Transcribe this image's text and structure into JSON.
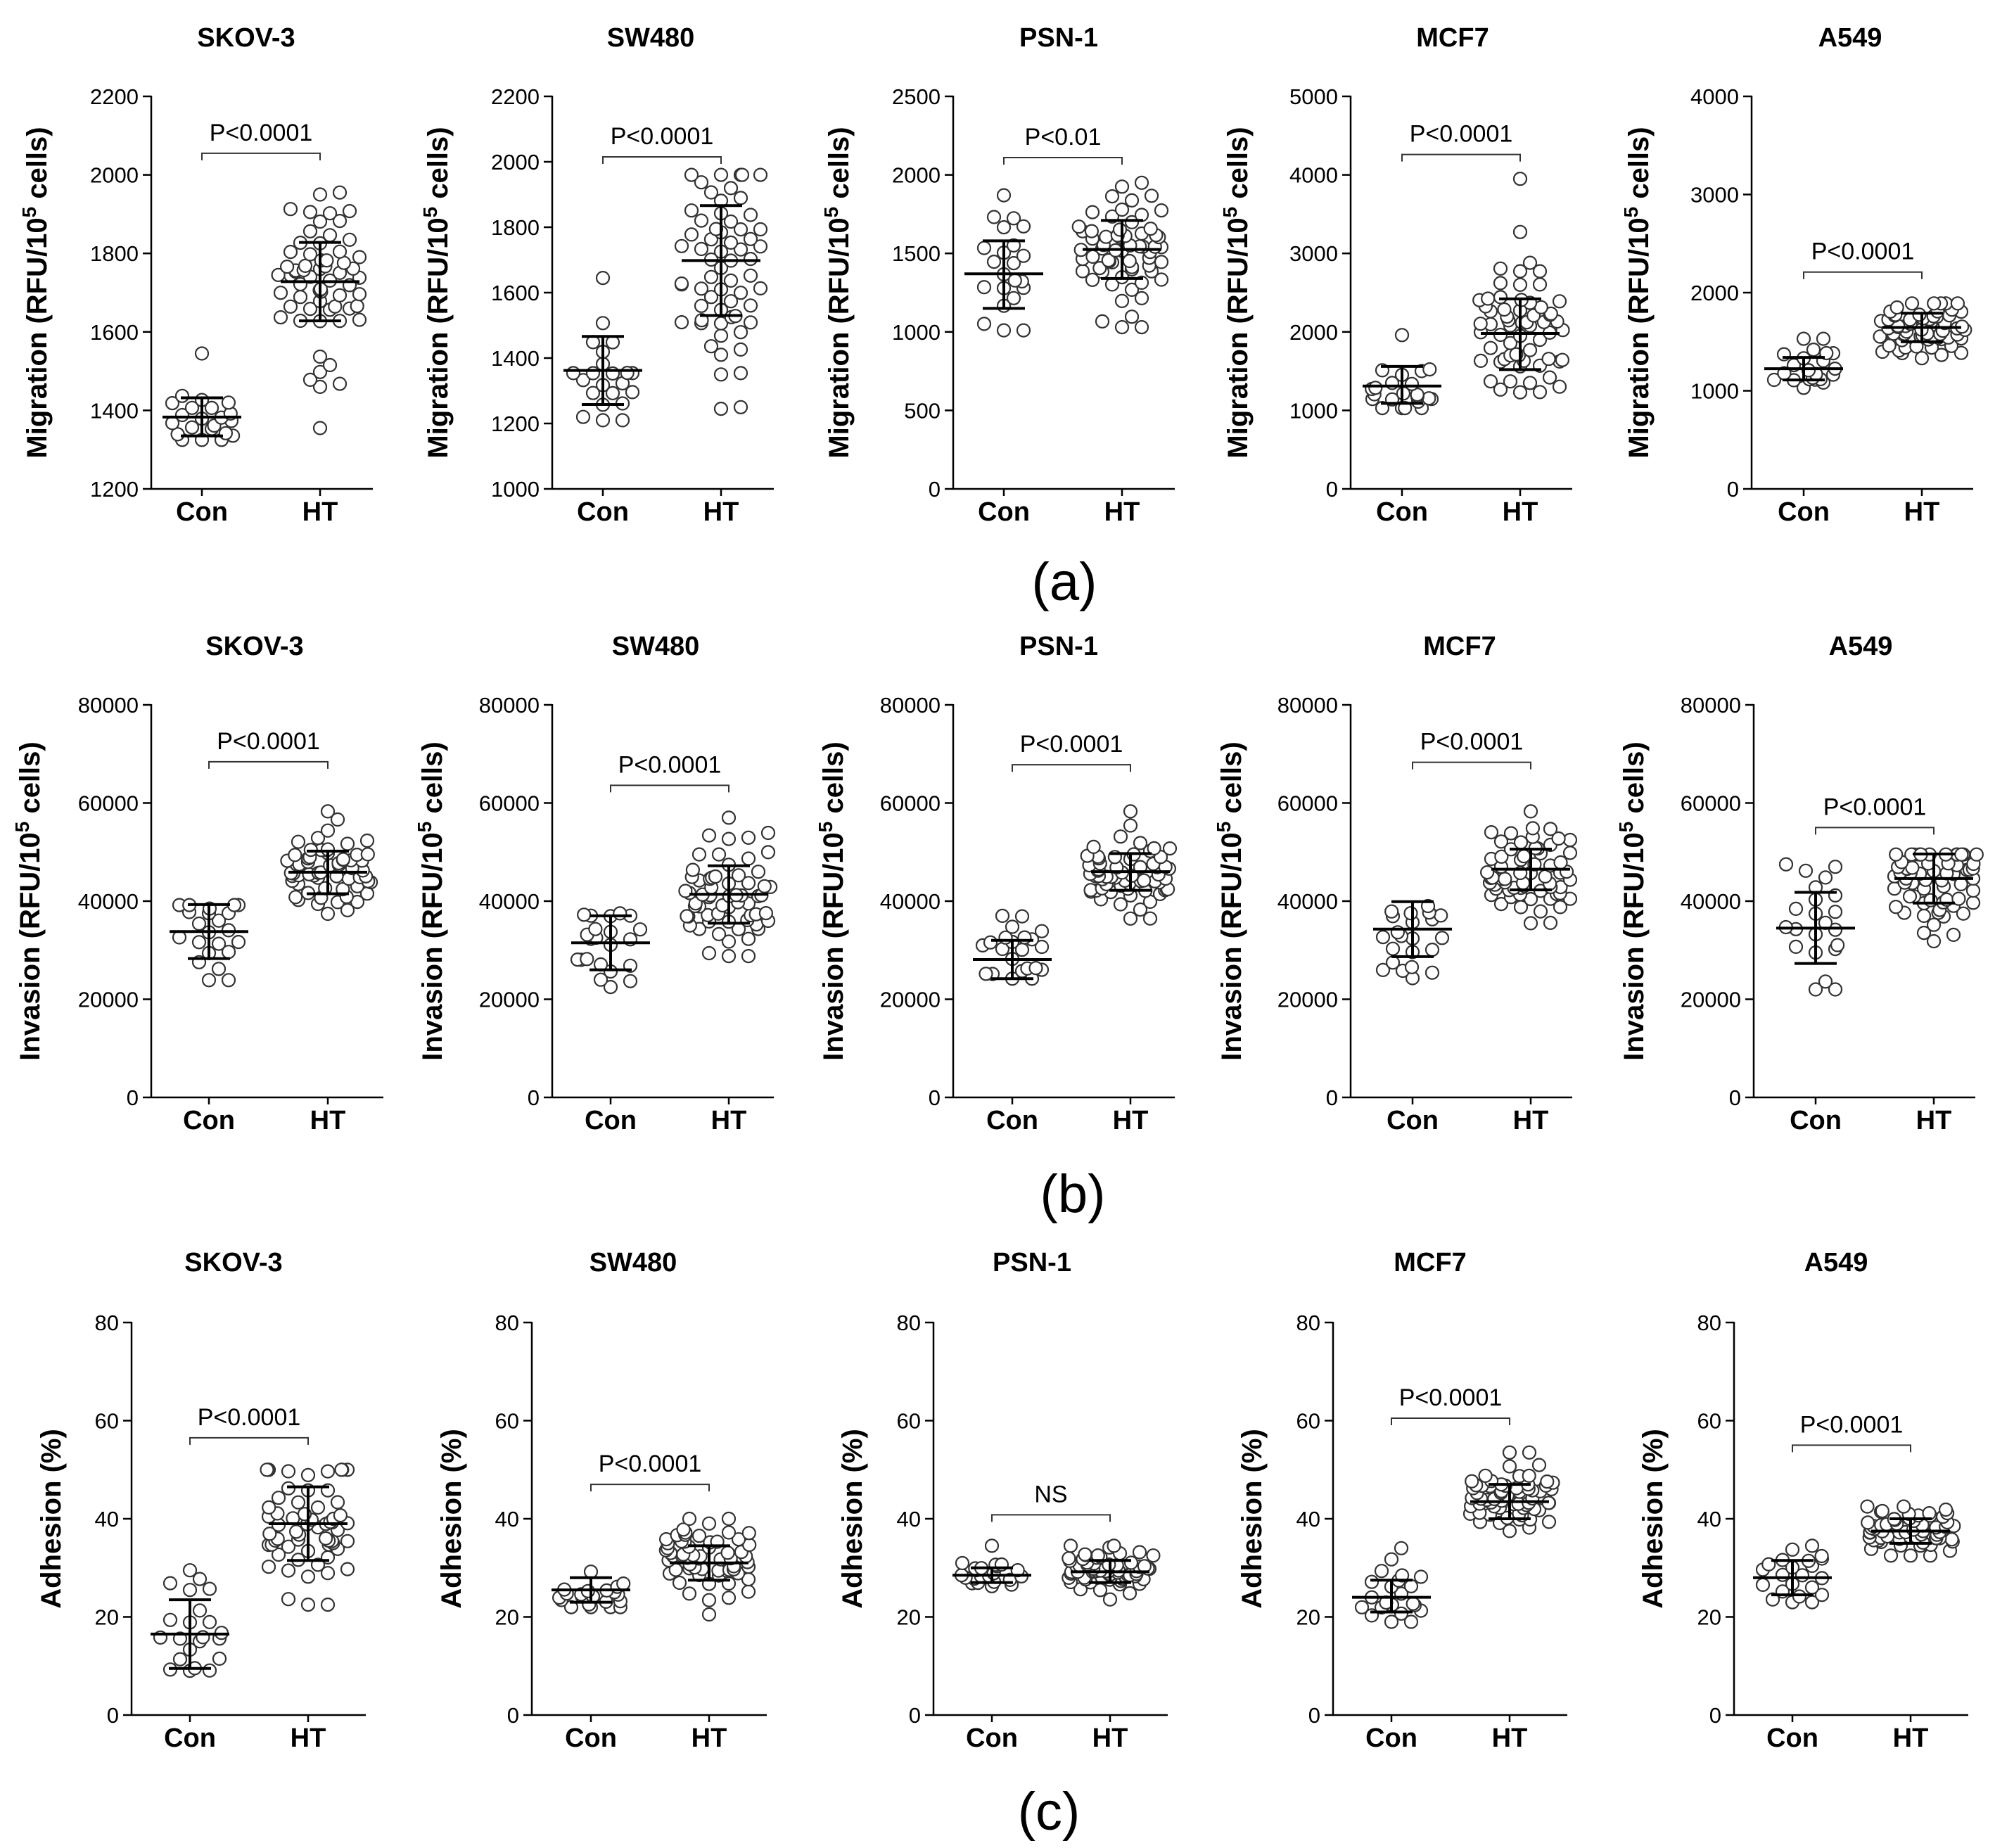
{
  "figure": {
    "row_labels": [
      "(a)",
      "(b)",
      "(c)"
    ]
  },
  "chart_data": [
    {
      "type": "scatter",
      "row": "a",
      "title": "SKOV-3",
      "ylabel": "Migration (RFU/10",
      "ylabel_sup": "5",
      "ylabel_tail": " cells)",
      "ylim": [
        1200,
        2200
      ],
      "yticks": [
        1200,
        1400,
        1600,
        1800,
        2000,
        2200
      ],
      "categories": [
        "Con",
        "HT"
      ],
      "groups": [
        {
          "name": "Con",
          "mean": 1383,
          "sd_low": 1335,
          "sd_high": 1432,
          "n": 22,
          "min": 1325,
          "max": 1545,
          "outliers": [
            1545
          ]
        },
        {
          "name": "HT",
          "mean": 1728,
          "sd_low": 1628,
          "sd_high": 1828,
          "n": 62,
          "min": 1355,
          "max": 1955,
          "outliers": [
            1355,
            1460,
            1950,
            1955
          ]
        }
      ],
      "annotation": "P<0.0001",
      "bracket_y": 2055
    },
    {
      "type": "scatter",
      "row": "a",
      "title": "SW480",
      "ylabel": "Migration (RFU/10",
      "ylabel_sup": "5",
      "ylabel_tail": " cells)",
      "ylim": [
        1000,
        2200
      ],
      "yticks": [
        1000,
        1200,
        1400,
        1600,
        1800,
        2000,
        2200
      ],
      "categories": [
        "Con",
        "HT"
      ],
      "groups": [
        {
          "name": "Con",
          "mean": 1362,
          "sd_low": 1258,
          "sd_high": 1466,
          "n": 22,
          "min": 1210,
          "max": 1645,
          "outliers": [
            1645
          ]
        },
        {
          "name": "HT",
          "mean": 1698,
          "sd_low": 1530,
          "sd_high": 1866,
          "n": 62,
          "min": 1245,
          "max": 1960,
          "outliers": [
            1245,
            1250,
            1350
          ]
        }
      ],
      "annotation": "P<0.0001",
      "bracket_y": 2015
    },
    {
      "type": "scatter",
      "row": "a",
      "title": "PSN-1",
      "ylabel": "Migration (RFU/10",
      "ylabel_sup": "5",
      "ylabel_tail": " cells)",
      "ylim": [
        0,
        2500
      ],
      "yticks": [
        0,
        500,
        1000,
        1500,
        2000,
        2500
      ],
      "categories": [
        "Con",
        "HT"
      ],
      "groups": [
        {
          "name": "Con",
          "mean": 1370,
          "sd_low": 1150,
          "sd_high": 1580,
          "n": 22,
          "min": 1010,
          "max": 1870,
          "outliers": [
            1870
          ]
        },
        {
          "name": "HT",
          "mean": 1525,
          "sd_low": 1340,
          "sd_high": 1710,
          "n": 62,
          "min": 1030,
          "max": 1950,
          "outliers": [
            1030
          ]
        }
      ],
      "annotation": "P<0.01",
      "bracket_y": 2110
    },
    {
      "type": "scatter",
      "row": "a",
      "title": "MCF7",
      "ylabel": "Migration (RFU/10",
      "ylabel_sup": "5",
      "ylabel_tail": " cells)",
      "ylim": [
        0,
        5000
      ],
      "yticks": [
        0,
        1000,
        2000,
        3000,
        4000,
        5000
      ],
      "categories": [
        "Con",
        "HT"
      ],
      "groups": [
        {
          "name": "Con",
          "mean": 1310,
          "sd_low": 1090,
          "sd_high": 1560,
          "n": 22,
          "min": 1030,
          "max": 1960,
          "outliers": [
            1960
          ]
        },
        {
          "name": "HT",
          "mean": 1980,
          "sd_low": 1520,
          "sd_high": 2420,
          "n": 62,
          "min": 1230,
          "max": 3950,
          "outliers": [
            3950,
            2880
          ]
        }
      ],
      "annotation": "P<0.0001",
      "bracket_y": 4260
    },
    {
      "type": "scatter",
      "row": "a",
      "title": "A549",
      "ylabel": "Migration (RFU/10",
      "ylabel_sup": "5",
      "ylabel_tail": " cells)",
      "ylim": [
        0,
        4000
      ],
      "yticks": [
        0,
        1000,
        2000,
        3000,
        4000
      ],
      "categories": [
        "Con",
        "HT"
      ],
      "groups": [
        {
          "name": "Con",
          "mean": 1225,
          "sd_low": 1110,
          "sd_high": 1340,
          "n": 22,
          "min": 1030,
          "max": 1530,
          "outliers": [
            1530
          ]
        },
        {
          "name": "HT",
          "mean": 1645,
          "sd_low": 1500,
          "sd_high": 1790,
          "n": 62,
          "min": 1260,
          "max": 1890,
          "outliers": []
        }
      ],
      "annotation": "P<0.0001",
      "bracket_y": 2210
    },
    {
      "type": "scatter",
      "row": "b",
      "title": "SKOV-3",
      "ylabel": "Invasion (RFU/10",
      "ylabel_sup": "5",
      "ylabel_tail": " cells)",
      "ylim": [
        0,
        80000
      ],
      "yticks": [
        0,
        20000,
        40000,
        60000,
        80000
      ],
      "categories": [
        "Con",
        "HT"
      ],
      "groups": [
        {
          "name": "Con",
          "mean": 33800,
          "sd_low": 28300,
          "sd_high": 39300,
          "n": 22,
          "min": 23900,
          "max": 39200,
          "outliers": []
        },
        {
          "name": "HT",
          "mean": 45900,
          "sd_low": 41500,
          "sd_high": 50200,
          "n": 62,
          "min": 35000,
          "max": 58300,
          "outliers": [
            58300
          ]
        }
      ],
      "annotation": "P<0.0001",
      "bracket_y": 68400
    },
    {
      "type": "scatter",
      "row": "b",
      "title": "SW480",
      "ylabel": "Invasion (RFU/10",
      "ylabel_sup": "5",
      "ylabel_tail": " cells)",
      "ylim": [
        0,
        80000
      ],
      "yticks": [
        0,
        20000,
        40000,
        60000,
        80000
      ],
      "categories": [
        "Con",
        "HT"
      ],
      "groups": [
        {
          "name": "Con",
          "mean": 31500,
          "sd_low": 26000,
          "sd_high": 37000,
          "n": 22,
          "min": 22500,
          "max": 37500,
          "outliers": []
        },
        {
          "name": "HT",
          "mean": 41400,
          "sd_low": 35500,
          "sd_high": 47200,
          "n": 62,
          "min": 28800,
          "max": 57000,
          "outliers": [
            57000,
            28800
          ]
        }
      ],
      "annotation": "P<0.0001",
      "bracket_y": 63600
    },
    {
      "type": "scatter",
      "row": "b",
      "title": "PSN-1",
      "ylabel": "Invasion (RFU/10",
      "ylabel_sup": "5",
      "ylabel_tail": " cells)",
      "ylim": [
        0,
        80000
      ],
      "yticks": [
        0,
        20000,
        40000,
        60000,
        80000
      ],
      "categories": [
        "Con",
        "HT"
      ],
      "groups": [
        {
          "name": "Con",
          "mean": 28100,
          "sd_low": 24200,
          "sd_high": 32000,
          "n": 22,
          "min": 24200,
          "max": 37000,
          "outliers": [
            37000,
            36900
          ]
        },
        {
          "name": "HT",
          "mean": 46000,
          "sd_low": 42200,
          "sd_high": 49700,
          "n": 62,
          "min": 35000,
          "max": 58300,
          "outliers": [
            58300
          ]
        }
      ],
      "annotation": "P<0.0001",
      "bracket_y": 67800
    },
    {
      "type": "scatter",
      "row": "b",
      "title": "MCF7",
      "ylabel": "Invasion (RFU/10",
      "ylabel_sup": "5",
      "ylabel_tail": " cells)",
      "ylim": [
        0,
        80000
      ],
      "yticks": [
        0,
        20000,
        40000,
        60000,
        80000
      ],
      "categories": [
        "Con",
        "HT"
      ],
      "groups": [
        {
          "name": "Con",
          "mean": 34300,
          "sd_low": 28700,
          "sd_high": 39900,
          "n": 22,
          "min": 24300,
          "max": 39000,
          "outliers": []
        },
        {
          "name": "HT",
          "mean": 46500,
          "sd_low": 42300,
          "sd_high": 50600,
          "n": 62,
          "min": 35000,
          "max": 58300,
          "outliers": [
            58300
          ]
        }
      ],
      "annotation": "P<0.0001",
      "bracket_y": 68300
    },
    {
      "type": "scatter",
      "row": "b",
      "title": "A549",
      "ylabel": "Invasion (RFU/10",
      "ylabel_sup": "5",
      "ylabel_tail": " cells)",
      "ylim": [
        0,
        80000
      ],
      "yticks": [
        0,
        20000,
        40000,
        60000,
        80000
      ],
      "categories": [
        "Con",
        "HT"
      ],
      "groups": [
        {
          "name": "Con",
          "mean": 34500,
          "sd_low": 27300,
          "sd_high": 41800,
          "n": 22,
          "min": 22000,
          "max": 47500,
          "outliers": [
            47500,
            47000
          ]
        },
        {
          "name": "HT",
          "mean": 44600,
          "sd_low": 39600,
          "sd_high": 49600,
          "n": 62,
          "min": 30500,
          "max": 49500,
          "outliers": []
        }
      ],
      "annotation": "P<0.0001",
      "bracket_y": 55000
    },
    {
      "type": "scatter",
      "row": "c",
      "title": "SKOV-3",
      "ylabel": "Adhesion (%)",
      "ylabel_sup": "",
      "ylabel_tail": "",
      "ylim": [
        0,
        80
      ],
      "yticks": [
        0,
        20,
        40,
        60,
        80
      ],
      "categories": [
        "Con",
        "HT"
      ],
      "groups": [
        {
          "name": "Con",
          "mean": 16.5,
          "sd_low": 9.5,
          "sd_high": 23.5,
          "n": 22,
          "min": 9,
          "max": 29.5,
          "outliers": [
            29.5
          ]
        },
        {
          "name": "HT",
          "mean": 39,
          "sd_low": 31.5,
          "sd_high": 46.5,
          "n": 62,
          "min": 22.5,
          "max": 50,
          "outliers": [
            22.5
          ]
        }
      ],
      "annotation": "P<0.0001",
      "bracket_y": 56.5
    },
    {
      "type": "scatter",
      "row": "c",
      "title": "SW480",
      "ylabel": "Adhesion (%)",
      "ylabel_sup": "",
      "ylabel_tail": "",
      "ylim": [
        0,
        80
      ],
      "yticks": [
        0,
        20,
        40,
        60,
        80
      ],
      "categories": [
        "Con",
        "HT"
      ],
      "groups": [
        {
          "name": "Con",
          "mean": 25.5,
          "sd_low": 23,
          "sd_high": 28,
          "n": 22,
          "min": 22,
          "max": 30.5,
          "outliers": []
        },
        {
          "name": "HT",
          "mean": 31,
          "sd_low": 27.5,
          "sd_high": 34.5,
          "n": 62,
          "min": 20.5,
          "max": 40,
          "outliers": [
            20.5,
            40
          ]
        }
      ],
      "annotation": "P<0.0001",
      "bracket_y": 47
    },
    {
      "type": "scatter",
      "row": "c",
      "title": "PSN-1",
      "ylabel": "Adhesion (%)",
      "ylabel_sup": "",
      "ylabel_tail": "",
      "ylim": [
        0,
        80
      ],
      "yticks": [
        0,
        20,
        40,
        60,
        80
      ],
      "categories": [
        "Con",
        "HT"
      ],
      "groups": [
        {
          "name": "Con",
          "mean": 28.5,
          "sd_low": 27,
          "sd_high": 30,
          "n": 22,
          "min": 26,
          "max": 34.5,
          "outliers": [
            34.5
          ]
        },
        {
          "name": "HT",
          "mean": 29.2,
          "sd_low": 27,
          "sd_high": 31.5,
          "n": 62,
          "min": 23.5,
          "max": 34.5,
          "outliers": []
        }
      ],
      "annotation": "NS",
      "bracket_y": 40.8
    },
    {
      "type": "scatter",
      "row": "c",
      "title": "MCF7",
      "ylabel": "Adhesion (%)",
      "ylabel_sup": "",
      "ylabel_tail": "",
      "ylim": [
        0,
        80
      ],
      "yticks": [
        0,
        20,
        40,
        60,
        80
      ],
      "categories": [
        "Con",
        "HT"
      ],
      "groups": [
        {
          "name": "Con",
          "mean": 24,
          "sd_low": 21,
          "sd_high": 27.5,
          "n": 22,
          "min": 19,
          "max": 34,
          "outliers": [
            34
          ]
        },
        {
          "name": "HT",
          "mean": 43.5,
          "sd_low": 40,
          "sd_high": 47,
          "n": 62,
          "min": 37.5,
          "max": 53.5,
          "outliers": [
            53.5
          ]
        }
      ],
      "annotation": "P<0.0001",
      "bracket_y": 60.5
    },
    {
      "type": "scatter",
      "row": "c",
      "title": "A549",
      "ylabel": "Adhesion (%)",
      "ylabel_sup": "",
      "ylabel_tail": "",
      "ylim": [
        0,
        80
      ],
      "yticks": [
        0,
        20,
        40,
        60,
        80
      ],
      "categories": [
        "Con",
        "HT"
      ],
      "groups": [
        {
          "name": "Con",
          "mean": 28,
          "sd_low": 24.5,
          "sd_high": 31.5,
          "n": 22,
          "min": 23,
          "max": 34.5,
          "outliers": []
        },
        {
          "name": "HT",
          "mean": 37.5,
          "sd_low": 35,
          "sd_high": 40,
          "n": 62,
          "min": 32.5,
          "max": 42.5,
          "outliers": []
        }
      ],
      "annotation": "P<0.0001",
      "bracket_y": 55
    }
  ]
}
